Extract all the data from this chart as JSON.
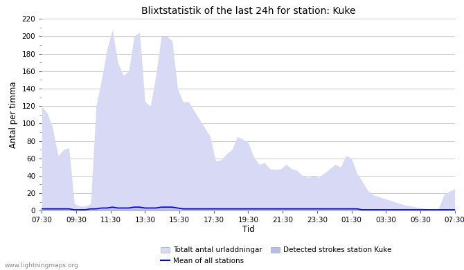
{
  "title": "Blixtstatistik of the last 24h for station: Kuke",
  "ylabel": "Antal per timma",
  "xlabel": "Tid",
  "watermark": "www.lightningmaps.org",
  "ylim": [
    0,
    220
  ],
  "yticks_major": [
    0,
    20,
    40,
    60,
    80,
    100,
    120,
    140,
    160,
    180,
    200,
    220
  ],
  "x_labels": [
    "07:30",
    "09:30",
    "11:30",
    "13:30",
    "15:30",
    "17:30",
    "19:30",
    "21:30",
    "23:30",
    "01:30",
    "03:30",
    "05:30",
    "07:30"
  ],
  "legend_total": "Totalt antal urladdningar",
  "legend_detected": "Detected strokes station Kuke",
  "legend_mean": "Mean of all stations",
  "fill_total_color": "#d8daf5",
  "fill_detected_color": "#b8bce8",
  "mean_line_color": "#0000cc",
  "background_color": "#ffffff",
  "grid_color": "#cccccc",
  "total_values": [
    120,
    112,
    95,
    63,
    70,
    72,
    8,
    5,
    5,
    8,
    120,
    150,
    185,
    208,
    170,
    155,
    160,
    200,
    205,
    125,
    120,
    155,
    200,
    200,
    195,
    140,
    125,
    125,
    115,
    105,
    95,
    85,
    57,
    58,
    65,
    70,
    85,
    82,
    78,
    62,
    53,
    55,
    48,
    47,
    48,
    53,
    48,
    46,
    40,
    38,
    40,
    38,
    43,
    48,
    53,
    50,
    63,
    60,
    43,
    33,
    23,
    18,
    16,
    14,
    12,
    10,
    8,
    6,
    5,
    4,
    3,
    2,
    2,
    2,
    18,
    22,
    25
  ],
  "detected_values": [
    2,
    2,
    3,
    2,
    2,
    2,
    1,
    1,
    1,
    2,
    3,
    3,
    4,
    5,
    3,
    3,
    4,
    4,
    5,
    3,
    3,
    4,
    4,
    4,
    4,
    3,
    3,
    3,
    3,
    2,
    2,
    2,
    2,
    2,
    2,
    2,
    2,
    2,
    2,
    2,
    2,
    2,
    2,
    2,
    2,
    2,
    2,
    2,
    2,
    2,
    2,
    2,
    2,
    2,
    2,
    2,
    2,
    2,
    2,
    2,
    1,
    1,
    1,
    1,
    1,
    1,
    1,
    1,
    1,
    1,
    1,
    1,
    1,
    1,
    1,
    1,
    1
  ],
  "mean_values": [
    2,
    2,
    2,
    2,
    2,
    2,
    1,
    1,
    1,
    2,
    2,
    3,
    3,
    4,
    3,
    3,
    3,
    4,
    4,
    3,
    3,
    3,
    4,
    4,
    4,
    3,
    2,
    2,
    2,
    2,
    2,
    2,
    2,
    2,
    2,
    2,
    2,
    2,
    2,
    2,
    2,
    2,
    2,
    2,
    2,
    2,
    2,
    2,
    2,
    2,
    2,
    2,
    2,
    2,
    2,
    2,
    2,
    2,
    2,
    1,
    1,
    1,
    1,
    1,
    1,
    1,
    1,
    1,
    1,
    1,
    1,
    1,
    1,
    1,
    1,
    1,
    1
  ]
}
